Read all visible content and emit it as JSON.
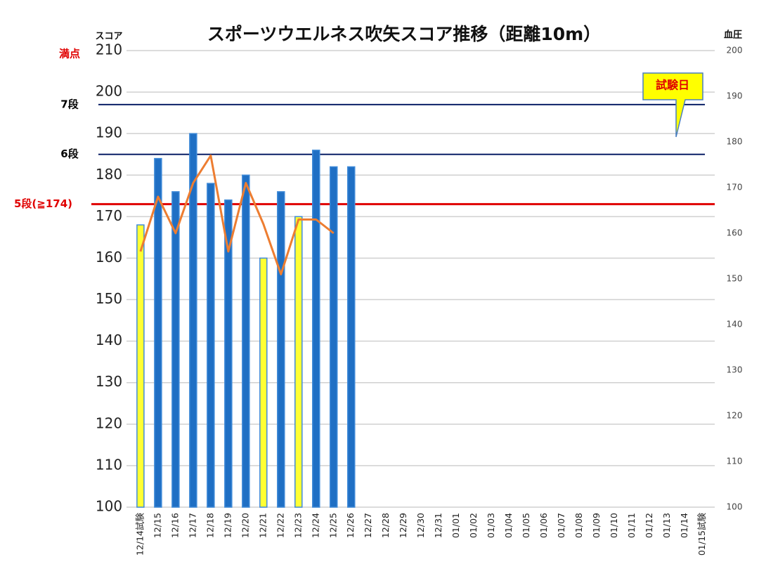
{
  "chart_data": {
    "type": "bar",
    "title": "スポーツウエルネス吹矢スコア推移（距離10m）",
    "y_label": "スコア",
    "y2_label": "血圧",
    "categories": [
      "12/14試験",
      "12/15",
      "12/16",
      "12/17",
      "12/18",
      "12/19",
      "12/20",
      "12/21",
      "12/22",
      "12/23",
      "12/24",
      "12/25",
      "12/26",
      "12/27",
      "12/28",
      "12/29",
      "12/30",
      "12/31",
      "01/01",
      "01/02",
      "01/03",
      "01/04",
      "01/05",
      "01/06",
      "01/07",
      "01/08",
      "01/09",
      "01/10",
      "01/11",
      "01/12",
      "01/13",
      "01/14",
      "01/15試験"
    ],
    "series": [
      {
        "name": "スコア",
        "type": "bar",
        "color": "#1f6fc4",
        "colors": [
          "#ffff33",
          "#1f6fc4",
          "#1f6fc4",
          "#1f6fc4",
          "#1f6fc4",
          "#1f6fc4",
          "#1f6fc4",
          "#ffff33",
          "#1f6fc4",
          "#ffff33",
          "#1f6fc4",
          "#1f6fc4",
          "#1f6fc4",
          null,
          null,
          null,
          null,
          null,
          null,
          null,
          null,
          null,
          null,
          null,
          null,
          null,
          null,
          null,
          null,
          null,
          null,
          null,
          null
        ],
        "values": [
          168,
          184,
          176,
          190,
          178,
          174,
          180,
          160,
          176,
          170,
          186,
          182,
          182,
          null,
          null,
          null,
          null,
          null,
          null,
          null,
          null,
          null,
          null,
          null,
          null,
          null,
          null,
          null,
          null,
          null,
          null,
          null,
          null
        ]
      },
      {
        "name": "血圧",
        "type": "line",
        "axis": "y2",
        "color": "#ed7d31",
        "values": [
          156,
          168,
          160,
          171,
          177,
          156,
          171,
          162,
          151,
          163,
          163,
          160,
          null,
          null,
          null,
          null,
          null,
          null,
          null,
          null,
          null,
          null,
          null,
          null,
          null,
          null,
          null,
          null,
          null,
          null,
          null,
          null,
          null
        ]
      }
    ],
    "ylim": [
      100,
      210
    ],
    "yticks": [
      100,
      110,
      120,
      130,
      140,
      150,
      160,
      170,
      180,
      190,
      200,
      210
    ],
    "y2lim": [
      100,
      200
    ],
    "y2ticks": [
      100,
      110,
      120,
      130,
      140,
      150,
      160,
      170,
      180,
      190,
      200
    ],
    "grid": true,
    "reference_lines": [
      {
        "label": "満点",
        "value": 210,
        "label_color": "#e00000",
        "line_color": null
      },
      {
        "label": "7段",
        "value": 197,
        "label_color": "#000000",
        "line_color": "#0a1f66"
      },
      {
        "label": "6段",
        "value": 185,
        "label_color": "#000000",
        "line_color": "#0a1f66"
      },
      {
        "label": "5段(≧174)",
        "value": 173,
        "label_color": "#e00000",
        "line_color": "#e00000"
      }
    ],
    "callout": "試験日"
  }
}
